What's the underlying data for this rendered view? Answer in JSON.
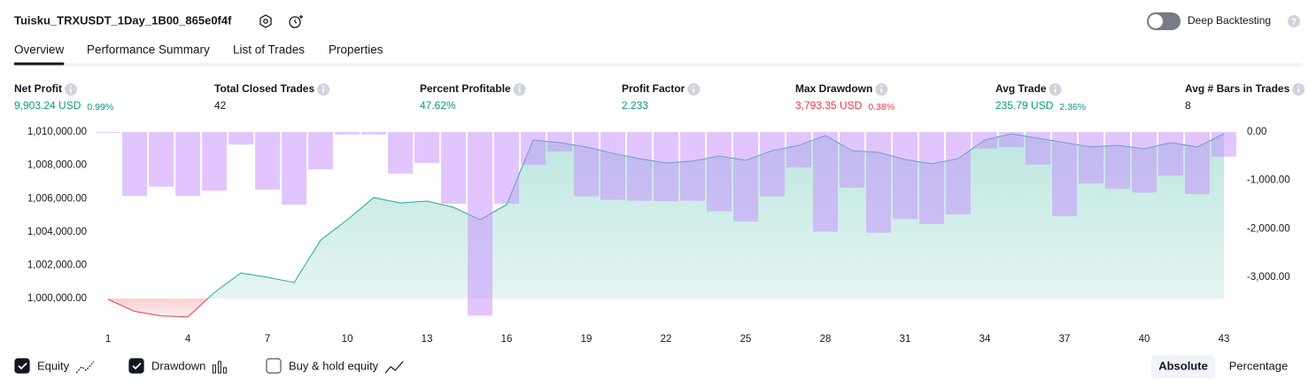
{
  "header": {
    "title": "Tuisku_TRXUSDT_1Day_1B00_865e0f4f",
    "deep_backtesting": {
      "label": "Deep Backtesting",
      "on": false
    }
  },
  "tabs": [
    {
      "label": "Overview",
      "active": true
    },
    {
      "label": "Performance Summary",
      "active": false
    },
    {
      "label": "List of Trades",
      "active": false
    },
    {
      "label": "Properties",
      "active": false
    }
  ],
  "stats": [
    {
      "label": "Net Profit",
      "value": "9,903.24 USD",
      "pct": "0.99%",
      "color": "#089981"
    },
    {
      "label": "Total Closed Trades",
      "value": "42",
      "color": "#131722"
    },
    {
      "label": "Percent Profitable",
      "value": "47.62%",
      "color": "#089981"
    },
    {
      "label": "Profit Factor",
      "value": "2.233",
      "color": "#089981"
    },
    {
      "label": "Max Drawdown",
      "value": "3,793.35 USD",
      "pct": "0.38%",
      "color": "#f23645"
    },
    {
      "label": "Avg Trade",
      "value": "235.79 USD",
      "pct": "2.36%",
      "color": "#089981"
    },
    {
      "label": "Avg # Bars in Trades",
      "value": "8",
      "color": "#131722"
    }
  ],
  "chart_data": {
    "type": "combo",
    "x": [
      1,
      2,
      3,
      4,
      5,
      6,
      7,
      8,
      9,
      10,
      11,
      12,
      13,
      14,
      15,
      16,
      17,
      18,
      19,
      20,
      21,
      22,
      23,
      24,
      25,
      26,
      27,
      28,
      29,
      30,
      31,
      32,
      33,
      34,
      35,
      36,
      37,
      38,
      39,
      40,
      41,
      42,
      43
    ],
    "xlim": [
      0.53,
      43.5
    ],
    "xticks": [
      1,
      4,
      7,
      10,
      13,
      16,
      19,
      22,
      25,
      28,
      31,
      34,
      37,
      40,
      43
    ],
    "ylim": [
      998780,
      1010000
    ],
    "yticks": [
      {
        "value": 1000000,
        "label": "1,000,000.00"
      },
      {
        "value": 1002000,
        "label": "1,002,000.00"
      },
      {
        "value": 1004000,
        "label": "1,004,000.00"
      },
      {
        "value": 1006000,
        "label": "1,006,000.00"
      },
      {
        "value": 1008000,
        "label": "1,008,000.00"
      },
      {
        "value": 1010000,
        "label": "1,010,000.00"
      }
    ],
    "y2lim": [
      -3860,
      0
    ],
    "y2ticks": [
      {
        "value": 0,
        "label": "0.00"
      },
      {
        "value": -1000,
        "label": "-1,000.00"
      },
      {
        "value": -2000,
        "label": "-2,000.00"
      },
      {
        "value": -3000,
        "label": "-3,000.00"
      }
    ],
    "series": [
      {
        "name": "Equity",
        "type": "line",
        "axis": "y",
        "color": "#22ab94",
        "negative_color": "#f23645",
        "checked": true,
        "values": [
          999950,
          999230,
          998960,
          998900,
          1000370,
          1001540,
          1001280,
          1000960,
          1003510,
          1004730,
          1006060,
          1005740,
          1005850,
          1005480,
          1004730,
          1005640,
          1009520,
          1009360,
          1009100,
          1008720,
          1008400,
          1008140,
          1008250,
          1008560,
          1008300,
          1008880,
          1009200,
          1009790,
          1008880,
          1008780,
          1008350,
          1008090,
          1008400,
          1009520,
          1009890,
          1009630,
          1009360,
          1009100,
          1009200,
          1008990,
          1009360,
          1009100,
          1009903
        ]
      },
      {
        "name": "Drawdown",
        "type": "bar",
        "axis": "y2",
        "color": "#c58bff",
        "checked": true,
        "values": [
          -20,
          -1320,
          -1130,
          -1320,
          -1210,
          -260,
          -1190,
          -1500,
          -770,
          -50,
          -50,
          -860,
          -640,
          -1480,
          -3793,
          -1480,
          -680,
          -400,
          -1330,
          -1400,
          -1420,
          -1430,
          -1420,
          -1640,
          -1850,
          -1330,
          -730,
          -2060,
          -1150,
          -2080,
          -1800,
          -1900,
          -1700,
          -340,
          -310,
          -670,
          -1740,
          -1060,
          -1170,
          -1250,
          -900,
          -1280,
          -510
        ]
      },
      {
        "name": "Buy & hold equity",
        "type": "line",
        "axis": "y",
        "color": "#131722",
        "checked": false
      }
    ]
  },
  "view_toggle": [
    {
      "label": "Absolute",
      "active": true
    },
    {
      "label": "Percentage",
      "active": false
    }
  ]
}
